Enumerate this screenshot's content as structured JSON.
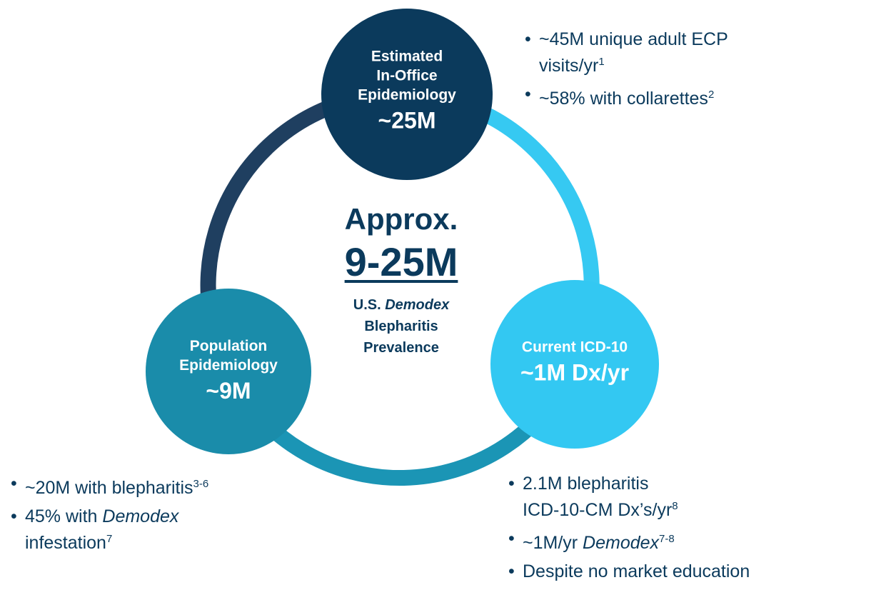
{
  "nodes": [
    {
      "lines": [
        "Estimated",
        "In-Office",
        "Epidemiology",
        "~25M"
      ],
      "color": "#0b3a5c"
    },
    {
      "lines": [
        "Population",
        "Epidemiology",
        "~9M"
      ],
      "color": "#1a8caa"
    },
    {
      "lines": [
        "Current ICD-10",
        "~1M Dx/yr"
      ],
      "color": "#33c8f2"
    }
  ],
  "center": {
    "lines": [
      [
        {
          "text": "Approx."
        }
      ],
      [
        {
          "text": "9-25M"
        }
      ],
      [
        {
          "text": "U.S. "
        },
        {
          "text": "Demodex",
          "style": "italic"
        }
      ],
      [
        {
          "text": "Blepharitis"
        }
      ],
      [
        {
          "text": "Prevalence"
        }
      ]
    ]
  },
  "bullet_groups": [
    {
      "bullets": [
        {
          "lines": [
            [
              {
                "text": "~45M unique adult ECP"
              }
            ],
            [
              {
                "text": "visits/yr"
              },
              {
                "text": "1",
                "style": "sup"
              }
            ]
          ]
        },
        {
          "lines": [
            [
              {
                "text": "~58% with collarettes"
              },
              {
                "text": "2",
                "style": "sup"
              }
            ]
          ]
        }
      ]
    },
    {
      "bullets": [
        {
          "lines": [
            [
              {
                "text": "~20M with blepharitis"
              },
              {
                "text": "3-6",
                "style": "sup"
              }
            ]
          ]
        },
        {
          "lines": [
            [
              {
                "text": "45% with "
              },
              {
                "text": "Demodex",
                "style": "italic"
              }
            ],
            [
              {
                "text": "infestation"
              },
              {
                "text": "7",
                "style": "sup"
              }
            ]
          ]
        }
      ]
    },
    {
      "bullets": [
        {
          "lines": [
            [
              {
                "text": "2.1M blepharitis"
              }
            ],
            [
              {
                "text": "ICD-10-CM Dx’s/yr"
              },
              {
                "text": "8",
                "style": "sup"
              }
            ]
          ]
        },
        {
          "lines": [
            [
              {
                "text": "~1M/yr "
              },
              {
                "text": "Demodex",
                "style": "italic"
              },
              {
                "text": "7-8",
                "style": "sup"
              }
            ]
          ]
        },
        {
          "lines": [
            [
              {
                "text": "Despite no market education"
              }
            ]
          ]
        }
      ]
    }
  ]
}
